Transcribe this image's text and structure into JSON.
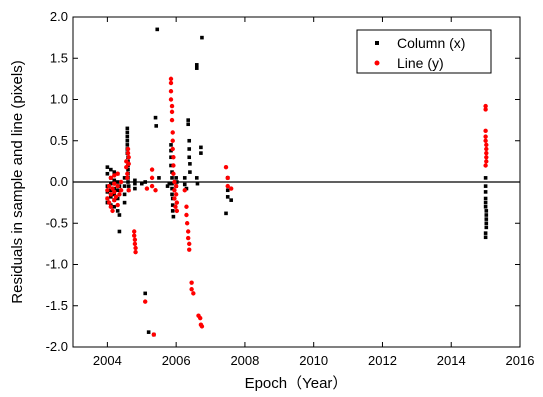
{
  "chart_data": {
    "type": "scatter",
    "title": "",
    "xlabel": "Epoch（Year）",
    "ylabel": "Residuals in sample and line (pixels)",
    "xlim": [
      2003,
      2016
    ],
    "ylim": [
      -2.0,
      2.0
    ],
    "xticks": [
      "2004",
      "2006",
      "2008",
      "2010",
      "2012",
      "2014",
      "2016"
    ],
    "yticks": [
      "-2.0",
      "-1.5",
      "-1.0",
      "-0.5",
      "0.0",
      "0.5",
      "1.0",
      "1.5",
      "2.0"
    ],
    "reference_line": 0.0,
    "grid": false,
    "legend_position": "top-right",
    "series": [
      {
        "name": "Column (x)",
        "color": "#000000",
        "marker": "square",
        "points": [
          [
            2004.0,
            0.18
          ],
          [
            2004.0,
            0.1
          ],
          [
            2004.0,
            -0.05
          ],
          [
            2004.0,
            -0.12
          ],
          [
            2004.0,
            -0.2
          ],
          [
            2004.0,
            -0.25
          ],
          [
            2004.1,
            0.15
          ],
          [
            2004.1,
            0.05
          ],
          [
            2004.1,
            -0.02
          ],
          [
            2004.1,
            -0.1
          ],
          [
            2004.1,
            -0.18
          ],
          [
            2004.1,
            -0.28
          ],
          [
            2004.2,
            0.12
          ],
          [
            2004.2,
            0.02
          ],
          [
            2004.2,
            -0.08
          ],
          [
            2004.2,
            -0.15
          ],
          [
            2004.2,
            -0.22
          ],
          [
            2004.2,
            -0.3
          ],
          [
            2004.3,
            0.1
          ],
          [
            2004.3,
            0.0
          ],
          [
            2004.3,
            -0.1
          ],
          [
            2004.3,
            -0.2
          ],
          [
            2004.3,
            -0.35
          ],
          [
            2004.35,
            -0.05
          ],
          [
            2004.35,
            -0.4
          ],
          [
            2004.35,
            -0.6
          ],
          [
            2004.5,
            0.05
          ],
          [
            2004.5,
            -0.05
          ],
          [
            2004.5,
            -0.15
          ],
          [
            2004.5,
            -0.25
          ],
          [
            2004.58,
            0.65
          ],
          [
            2004.58,
            0.6
          ],
          [
            2004.58,
            0.55
          ],
          [
            2004.58,
            0.5
          ],
          [
            2004.58,
            0.45
          ],
          [
            2004.58,
            0.4
          ],
          [
            2004.58,
            0.35
          ],
          [
            2004.6,
            0.3
          ],
          [
            2004.6,
            0.25
          ],
          [
            2004.6,
            0.2
          ],
          [
            2004.6,
            0.15
          ],
          [
            2004.6,
            0.1
          ],
          [
            2004.6,
            0.05
          ],
          [
            2004.6,
            0.0
          ],
          [
            2004.62,
            -0.05
          ],
          [
            2004.62,
            -0.1
          ],
          [
            2004.8,
            0.02
          ],
          [
            2004.8,
            -0.02
          ],
          [
            2004.8,
            -0.08
          ],
          [
            2005.0,
            -0.02
          ],
          [
            2005.1,
            0.0
          ],
          [
            2005.1,
            -1.35
          ],
          [
            2005.2,
            -1.82
          ],
          [
            2005.35,
            -1.85
          ],
          [
            2005.4,
            0.78
          ],
          [
            2005.42,
            0.68
          ],
          [
            2005.45,
            1.85
          ],
          [
            2005.5,
            0.05
          ],
          [
            2005.75,
            -0.05
          ],
          [
            2005.8,
            -0.02
          ],
          [
            2005.85,
            0.45
          ],
          [
            2005.85,
            0.38
          ],
          [
            2005.85,
            0.3
          ],
          [
            2005.85,
            0.2
          ],
          [
            2005.88,
            0.12
          ],
          [
            2005.88,
            0.05
          ],
          [
            2005.88,
            -0.02
          ],
          [
            2005.88,
            -0.08
          ],
          [
            2005.88,
            -0.15
          ],
          [
            2005.9,
            -0.2
          ],
          [
            2005.9,
            -0.28
          ],
          [
            2005.9,
            -0.35
          ],
          [
            2005.92,
            -0.42
          ],
          [
            2006.0,
            0.05
          ],
          [
            2006.0,
            -0.05
          ],
          [
            2006.02,
            0.0
          ],
          [
            2006.25,
            0.05
          ],
          [
            2006.25,
            -0.03
          ],
          [
            2006.3,
            -0.08
          ],
          [
            2006.35,
            0.75
          ],
          [
            2006.35,
            0.7
          ],
          [
            2006.38,
            0.5
          ],
          [
            2006.38,
            0.4
          ],
          [
            2006.38,
            0.3
          ],
          [
            2006.4,
            0.22
          ],
          [
            2006.4,
            0.12
          ],
          [
            2006.6,
            1.42
          ],
          [
            2006.6,
            1.38
          ],
          [
            2006.6,
            0.05
          ],
          [
            2006.62,
            -0.02
          ],
          [
            2006.72,
            0.42
          ],
          [
            2006.72,
            0.35
          ],
          [
            2006.75,
            1.75
          ],
          [
            2007.5,
            0.05
          ],
          [
            2007.5,
            -0.1
          ],
          [
            2007.5,
            -0.18
          ],
          [
            2007.45,
            -0.38
          ],
          [
            2007.6,
            -0.22
          ],
          [
            2015.0,
            0.05
          ],
          [
            2015.0,
            -0.05
          ],
          [
            2015.0,
            -0.12
          ],
          [
            2015.0,
            -0.2
          ],
          [
            2015.0,
            -0.25
          ],
          [
            2015.0,
            -0.3
          ],
          [
            2015.02,
            -0.35
          ],
          [
            2015.02,
            -0.4
          ],
          [
            2015.02,
            -0.45
          ],
          [
            2015.02,
            -0.5
          ],
          [
            2015.02,
            -0.55
          ],
          [
            2015.0,
            -0.62
          ],
          [
            2015.0,
            -0.67
          ]
        ]
      },
      {
        "name": "Line (y)",
        "color": "#ff0000",
        "marker": "circle",
        "points": [
          [
            2004.0,
            -0.1
          ],
          [
            2004.0,
            -0.2
          ],
          [
            2004.05,
            -0.05
          ],
          [
            2004.05,
            -0.25
          ],
          [
            2004.1,
            0.05
          ],
          [
            2004.1,
            -0.15
          ],
          [
            2004.1,
            -0.3
          ],
          [
            2004.15,
            -0.08
          ],
          [
            2004.15,
            -0.35
          ],
          [
            2004.2,
            0.08
          ],
          [
            2004.2,
            -0.02
          ],
          [
            2004.2,
            -0.12
          ],
          [
            2004.2,
            -0.22
          ],
          [
            2004.25,
            -0.18
          ],
          [
            2004.3,
            0.1
          ],
          [
            2004.3,
            -0.05
          ],
          [
            2004.3,
            -0.28
          ],
          [
            2004.35,
            -0.15
          ],
          [
            2004.4,
            -0.1
          ],
          [
            2004.4,
            0.0
          ],
          [
            2004.55,
            0.25
          ],
          [
            2004.55,
            0.18
          ],
          [
            2004.58,
            0.1
          ],
          [
            2004.58,
            0.05
          ],
          [
            2004.6,
            0.4
          ],
          [
            2004.6,
            0.35
          ],
          [
            2004.62,
            0.3
          ],
          [
            2004.62,
            -0.1
          ],
          [
            2004.62,
            0.22
          ],
          [
            2004.78,
            -0.6
          ],
          [
            2004.78,
            -0.65
          ],
          [
            2004.8,
            -0.7
          ],
          [
            2004.8,
            -0.75
          ],
          [
            2004.82,
            -0.8
          ],
          [
            2004.82,
            -0.85
          ],
          [
            2005.1,
            -1.45
          ],
          [
            2005.15,
            -0.08
          ],
          [
            2005.3,
            0.15
          ],
          [
            2005.3,
            0.05
          ],
          [
            2005.3,
            -0.05
          ],
          [
            2005.35,
            -1.85
          ],
          [
            2005.4,
            -0.1
          ],
          [
            2005.85,
            1.25
          ],
          [
            2005.85,
            1.2
          ],
          [
            2005.85,
            1.1
          ],
          [
            2005.85,
            1.0
          ],
          [
            2005.88,
            0.92
          ],
          [
            2005.88,
            0.85
          ],
          [
            2005.88,
            0.75
          ],
          [
            2005.9,
            0.6
          ],
          [
            2005.9,
            0.5
          ],
          [
            2005.9,
            0.4
          ],
          [
            2005.92,
            0.3
          ],
          [
            2005.92,
            0.2
          ],
          [
            2005.92,
            0.1
          ],
          [
            2005.95,
            0.0
          ],
          [
            2005.95,
            -0.1
          ],
          [
            2005.95,
            -0.2
          ],
          [
            2005.98,
            -0.3
          ],
          [
            2006.0,
            -0.05
          ],
          [
            2006.0,
            -0.15
          ],
          [
            2006.02,
            -0.25
          ],
          [
            2006.02,
            -0.35
          ],
          [
            2006.25,
            -0.1
          ],
          [
            2006.3,
            -0.3
          ],
          [
            2006.3,
            -0.4
          ],
          [
            2006.32,
            -0.5
          ],
          [
            2006.35,
            -0.6
          ],
          [
            2006.35,
            -0.68
          ],
          [
            2006.38,
            -0.75
          ],
          [
            2006.38,
            -0.82
          ],
          [
            2006.45,
            -1.22
          ],
          [
            2006.45,
            -1.3
          ],
          [
            2006.5,
            -1.35
          ],
          [
            2006.65,
            -1.62
          ],
          [
            2006.7,
            -1.65
          ],
          [
            2006.72,
            -1.73
          ],
          [
            2006.75,
            -1.75
          ],
          [
            2007.45,
            0.18
          ],
          [
            2007.5,
            0.05
          ],
          [
            2007.5,
            -0.05
          ],
          [
            2007.6,
            -0.08
          ],
          [
            2015.0,
            0.92
          ],
          [
            2015.0,
            0.88
          ],
          [
            2015.0,
            0.62
          ],
          [
            2015.0,
            0.55
          ],
          [
            2015.0,
            0.5
          ],
          [
            2015.02,
            0.45
          ],
          [
            2015.02,
            0.4
          ],
          [
            2015.02,
            0.35
          ],
          [
            2015.02,
            0.3
          ],
          [
            2015.02,
            0.25
          ],
          [
            2015.0,
            0.2
          ]
        ]
      }
    ]
  }
}
